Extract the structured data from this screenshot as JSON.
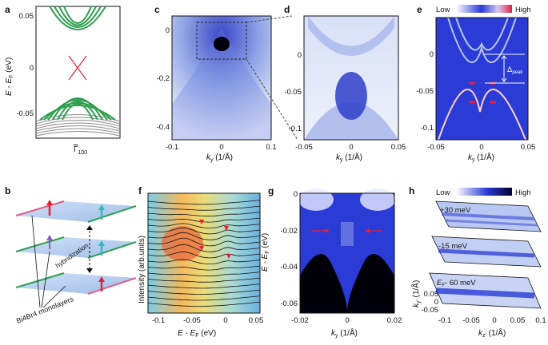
{
  "panels": {
    "a": {
      "label": "a",
      "yticks": [
        "0.05",
        "0",
        "-0.05"
      ],
      "ylabel_main": "E - E",
      "ylabel_sub": "F",
      "ylabel_unit": " (eV)",
      "xlabel_main": "Γ",
      "xlabel_sub": "100"
    },
    "b": {
      "label": "b",
      "hyb": "hybridization",
      "mono": "Bi4Br4 monolayers"
    },
    "c": {
      "label": "c",
      "yticks": [
        "0",
        "-0.2",
        "-0.4"
      ],
      "xticks": [
        "-0.1",
        "0",
        "0.1"
      ],
      "xlabel": "k",
      "xsub": "y",
      "xunit": " (1/Å)"
    },
    "d": {
      "label": "d",
      "yticks": [
        "0",
        "-0.05",
        "-0.1"
      ],
      "xticks": [
        "-0.05",
        "0",
        "0.05"
      ],
      "xlabel": "k",
      "xsub": "y",
      "xunit": " (1/Å)"
    },
    "e": {
      "label": "e",
      "low": "Low",
      "high": "High",
      "yticks": [
        "0",
        "-0.05",
        "-0.1"
      ],
      "xticks": [
        "-0.05",
        "0",
        "0.05"
      ],
      "xlabel": "k",
      "xsub": "y",
      "xunit": " (1/Å)",
      "delta": "Δ",
      "delta_sub": "peak"
    },
    "f": {
      "label": "f",
      "ylabel": "Intensity (arb.units)",
      "xticks": [
        "-0.1",
        "-0.05",
        "0",
        "0.05"
      ],
      "xlabel": "E - E",
      "xsub": "F",
      "xunit": " (eV)"
    },
    "g": {
      "label": "g",
      "yticks": [
        "0",
        "-0.02",
        "-0.04",
        "-0.06"
      ],
      "xticks": [
        "-0.02",
        "0",
        "0.02"
      ],
      "xlabel": "k",
      "xsub": "y",
      "xunit": " (1/Å)",
      "ylabel": "E - E",
      "ysub": "F",
      "yunit": " (eV)"
    },
    "h": {
      "label": "h",
      "low": "Low",
      "high": "High",
      "e1": "+30 meV",
      "e2": "-15 meV",
      "e3_main": "E",
      "e3_sub": "F",
      "e3_rest": "- 60 meV",
      "xticks": [
        "-0.1",
        "-0.05",
        "0",
        "0.05",
        "0.1"
      ],
      "xlabel": "k",
      "xsub": "z'",
      "xunit": " (1/Å)",
      "yticks": [
        "0.05",
        "0",
        "-0.05"
      ],
      "ylabel": "k",
      "ysub": "y'",
      "yunit": " (1/Å)"
    }
  },
  "colors": {
    "green": "#2f9e4f",
    "red": "#e3203a",
    "gray": "#8a8a8a",
    "blue": "#2a3bd6",
    "plane": "#a9c7ee"
  }
}
